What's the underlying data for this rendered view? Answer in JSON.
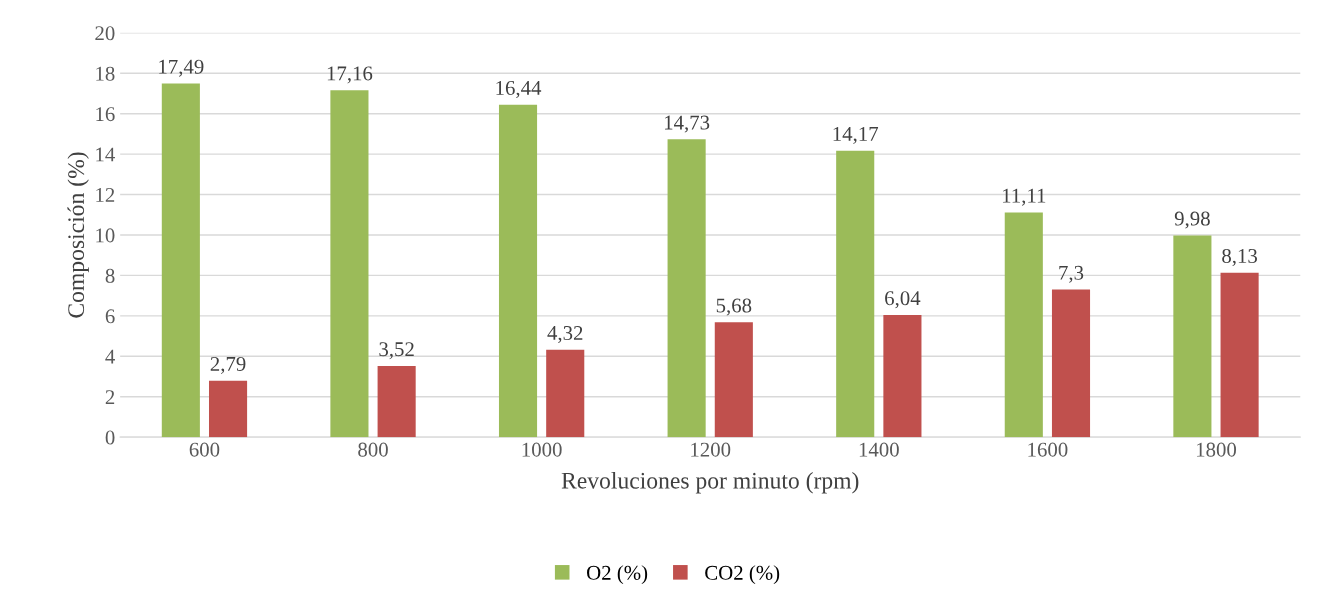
{
  "chart_data": {
    "type": "bar",
    "xlabel": "Revoluciones por minuto (rpm)",
    "ylabel": "Composición (%)",
    "categories": [
      "600",
      "800",
      "1000",
      "1200",
      "1400",
      "1600",
      "1800"
    ],
    "series": [
      {
        "name": "O2 (%)",
        "color": "#9bbb59",
        "values": [
          17.49,
          17.16,
          16.44,
          14.73,
          14.17,
          11.11,
          9.98
        ],
        "value_labels": [
          "17,49",
          "17,16",
          "16,44",
          "14,73",
          "14,17",
          "11,11",
          "9,98"
        ]
      },
      {
        "name": "CO2 (%)",
        "color": "#c0504d",
        "values": [
          2.79,
          3.52,
          4.32,
          5.68,
          6.04,
          7.3,
          8.13
        ],
        "value_labels": [
          "2,79",
          "3,52",
          "4,32",
          "5,68",
          "6,04",
          "7,3",
          "8,13"
        ]
      }
    ],
    "ylim": [
      0,
      20
    ],
    "yticks": [
      0,
      2,
      4,
      6,
      8,
      10,
      12,
      14,
      16,
      18,
      20
    ],
    "grid": "y",
    "legend": "bottom"
  }
}
